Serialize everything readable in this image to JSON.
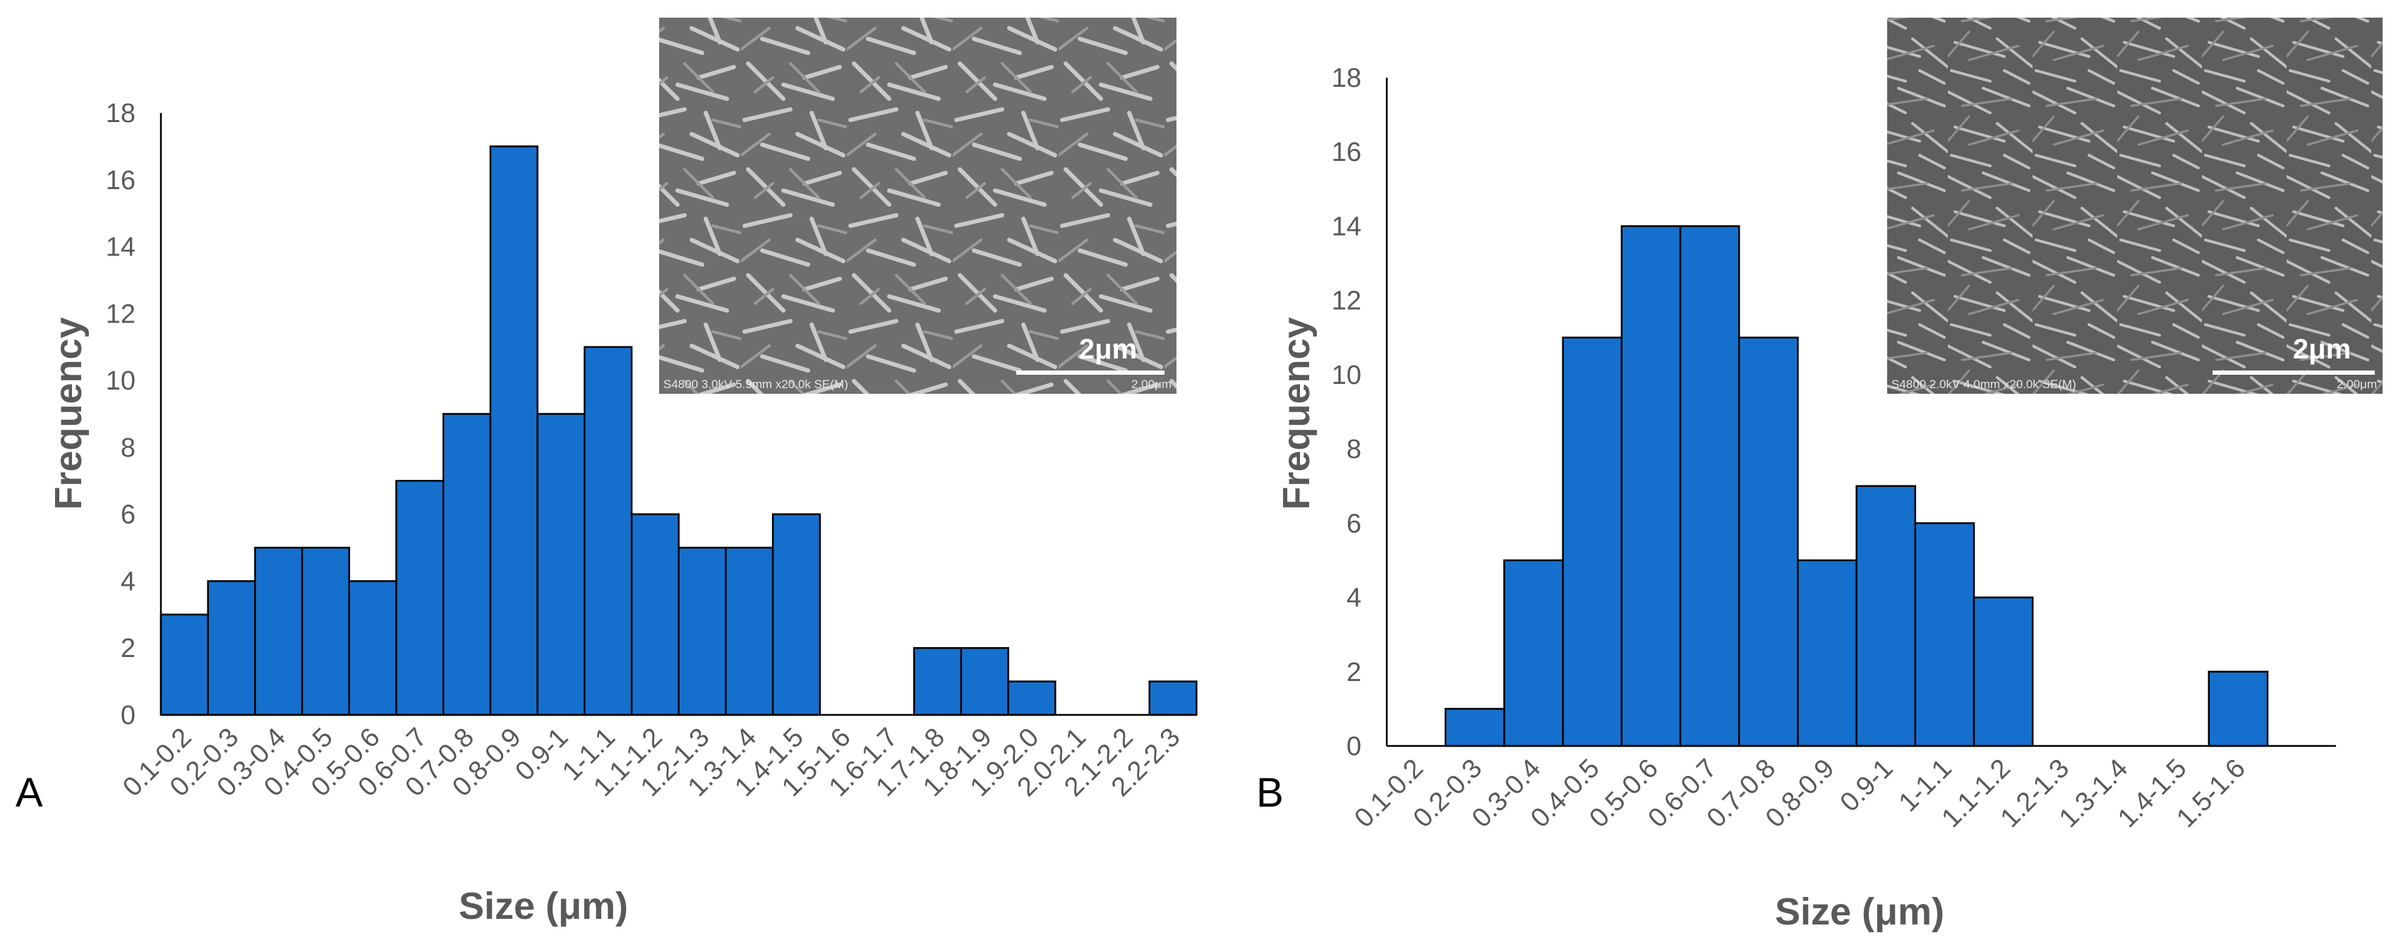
{
  "colors": {
    "bar": "#1570cd",
    "axis": "#000000",
    "tick_text": "#595959",
    "title_text": "#595959"
  },
  "chart_data": [
    {
      "type": "bar",
      "panel_label": "A",
      "categories": [
        "0.1-0.2",
        "0.2-0.3",
        "0.3-0.4",
        "0.4-0.5",
        "0.5-0.6",
        "0.6-0.7",
        "0.7-0.8",
        "0.8-0.9",
        "0.9-1",
        "1-1.1",
        "1.1-1.2",
        "1.2-1.3",
        "1.3-1.4",
        "1.4-1.5",
        "1.5-1.6",
        "1.6-1.7",
        "1.7-1.8",
        "1.8-1.9",
        "1.9-2.0",
        "2.0-2.1",
        "2.1-2.2",
        "2.2-2.3"
      ],
      "values": [
        3,
        4,
        5,
        5,
        4,
        7,
        9,
        17,
        9,
        11,
        6,
        5,
        5,
        6,
        0,
        0,
        2,
        2,
        1,
        0,
        0,
        1
      ],
      "xlabel": "Size (μm)",
      "ylabel": "Frequency",
      "ylim": [
        0,
        18
      ],
      "yticks": [
        0,
        2,
        4,
        6,
        8,
        10,
        12,
        14,
        16,
        18
      ],
      "grid": false,
      "inset": {
        "scale_label": "2μm",
        "meta": "S4800 3.0kV 5.9mm x20.0k SE(M)",
        "meta_right": "2.00μm"
      }
    },
    {
      "type": "bar",
      "panel_label": "B",
      "categories": [
        "0.1-0.2",
        "0.2-0.3",
        "0.3-0.4",
        "0.4-0.5",
        "0.5-0.6",
        "0.6-0.7",
        "0.7-0.8",
        "0.8-0.9",
        "0.9-1",
        "1-1.1",
        "1.1-1.2",
        "1.2-1.3",
        "1.3-1.4",
        "1.4-1.5",
        "1.5-1.6"
      ],
      "values": [
        0,
        1,
        5,
        11,
        14,
        14,
        11,
        5,
        7,
        6,
        4,
        0,
        0,
        0,
        2
      ],
      "xlabel": "Size (μm)",
      "ylabel": "Frequency",
      "ylim": [
        0,
        18
      ],
      "yticks": [
        0,
        2,
        4,
        6,
        8,
        10,
        12,
        14,
        16,
        18
      ],
      "grid": false,
      "inset": {
        "scale_label": "2μm",
        "meta": "S4800 2.0kV 4.0mm x20.0k SE(M)",
        "meta_right": "2.00μm"
      }
    }
  ]
}
